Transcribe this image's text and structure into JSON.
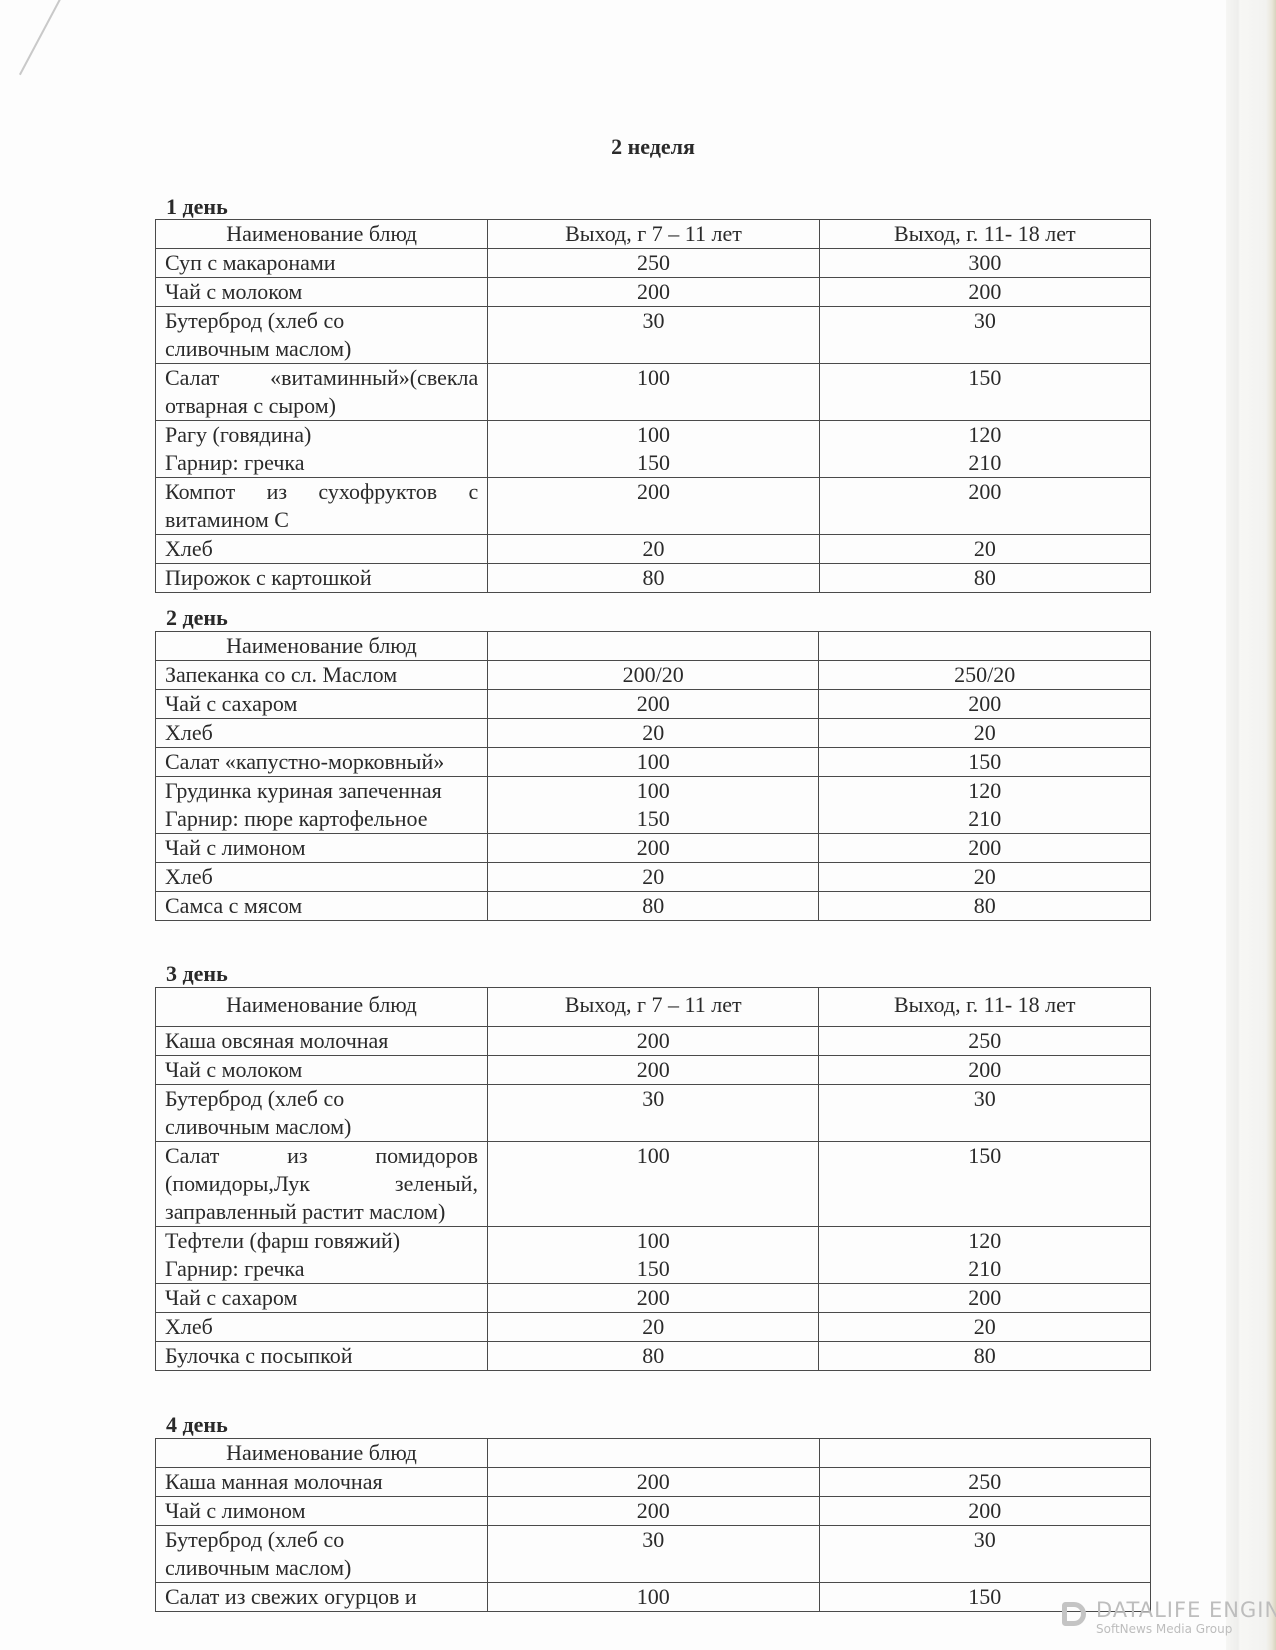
{
  "title": "2 неделя",
  "days": [
    {
      "label": "1 день",
      "header": [
        "Наименование блюд",
        "Выход, г 7 – 11 лет",
        "Выход, г. 11- 18 лет"
      ],
      "rows": [
        {
          "name": "Суп с  макаронами",
          "a": "250",
          "b": "300"
        },
        {
          "name": "Чай с молоком",
          "a": "200",
          "b": "200"
        },
        {
          "name": "Бутерброд (хлеб со\nсливочным маслом)",
          "a": "30",
          "b": "30"
        },
        {
          "name": "Салат «витаминный»(свекла отварная с сыром)",
          "a": "100",
          "b": "150"
        },
        {
          "name": "Рагу (говядина)\nГарнир:  гречка",
          "a": "100\n150",
          "b": "120\n210"
        },
        {
          "name": "Компот из сухофруктов с витамином С",
          "a": "200",
          "b": "200"
        },
        {
          "name": "Хлеб",
          "a": "20",
          "b": "20"
        },
        {
          "name": "Пирожок с картошкой",
          "a": "80",
          "b": "80"
        }
      ]
    },
    {
      "label": "2 день",
      "header": [
        "Наименование блюд",
        "",
        ""
      ],
      "rows": [
        {
          "name": "Запеканка со сл. Маслом",
          "a": "200/20",
          "b": "250/20"
        },
        {
          "name": "Чай с сахаром",
          "a": "200",
          "b": "200"
        },
        {
          "name": "Хлеб",
          "a": "20",
          "b": "20"
        },
        {
          "name": " Салат                    «капустно-морковный»",
          "a": "100",
          "b": "150"
        },
        {
          "name": "Грудинка куриная запеченная\nГарнир: пюре картофельное",
          "a": "100\n150",
          "b": "120\n210"
        },
        {
          "name": "Чай с лимоном",
          "a": "200",
          "b": "200"
        },
        {
          "name": "Хлеб",
          "a": "20",
          "b": "20"
        },
        {
          "name": "Самса с мясом",
          "a": "80",
          "b": "80"
        }
      ]
    },
    {
      "label": "3 день",
      "header": [
        "Наименование блюд",
        "Выход, г 7 – 11 лет",
        "Выход, г. 11- 18 лет"
      ],
      "rows": [
        {
          "name": "Каша овсяная молочная",
          "a": "200",
          "b": "250"
        },
        {
          "name": "Чай с молоком",
          "a": "200",
          "b": "200"
        },
        {
          "name": "Бутерброд (хлеб со\nсливочным маслом)",
          "a": "30",
          "b": "30"
        },
        {
          "name": "Салат из помидоров (помидоры,Лук зеленый, заправленный растит маслом)",
          "a": "100",
          "b": "150"
        },
        {
          "name": "Тефтели (фарш говяжий)\nГарнир: гречка",
          "a": "100\n150",
          "b": "120\n210"
        },
        {
          "name": "Чай с сахаром",
          "a": "200",
          "b": "200"
        },
        {
          "name": "Хлеб",
          "a": "20",
          "b": "20"
        },
        {
          "name": "Булочка с посыпкой",
          "a": "80",
          "b": "80"
        }
      ]
    },
    {
      "label": "4 день",
      "header": [
        "Наименование блюд",
        "",
        ""
      ],
      "rows": [
        {
          "name": "Каша манная молочная",
          "a": "200",
          "b": "250"
        },
        {
          "name": "Чай с лимоном",
          "a": "200",
          "b": "200"
        },
        {
          "name": "Бутерброд (хлеб со\nсливочным маслом)",
          "a": "30",
          "b": "30"
        },
        {
          "name": "Салат из свежих огурцов и",
          "a": "100",
          "b": "150"
        }
      ]
    }
  ],
  "watermark": {
    "line1": "DATALIFE ENGINE",
    "line2": "SoftNews Media Group"
  }
}
